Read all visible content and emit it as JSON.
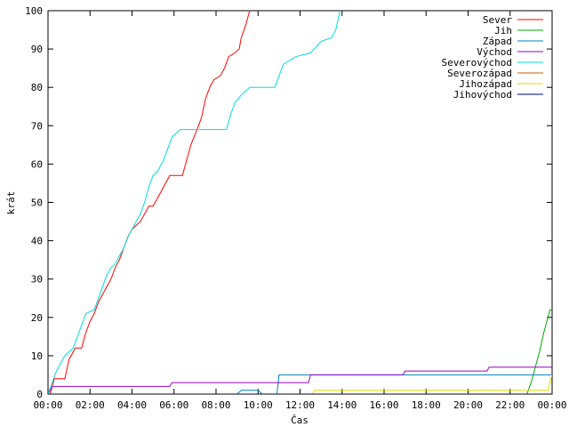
{
  "chart_data": {
    "type": "line",
    "title": "",
    "xlabel": "Čas",
    "ylabel": "krát",
    "xlim": [
      0,
      24
    ],
    "ylim": [
      0,
      100
    ],
    "x_tick_labels": [
      "00:00",
      "02:00",
      "04:00",
      "06:00",
      "08:00",
      "10:00",
      "12:00",
      "14:00",
      "16:00",
      "18:00",
      "20:00",
      "22:00",
      "00:00"
    ],
    "y_tick_labels": [
      "0",
      "10",
      "20",
      "30",
      "40",
      "50",
      "60",
      "70",
      "80",
      "90",
      "100"
    ],
    "legend_position": "top-right",
    "grid": false,
    "series": [
      {
        "name": "Sever",
        "color": "#ff0000",
        "points": [
          [
            0.1,
            0
          ],
          [
            0.3,
            4
          ],
          [
            0.8,
            4
          ],
          [
            1,
            9
          ],
          [
            1.3,
            12
          ],
          [
            1.6,
            12
          ],
          [
            1.8,
            16
          ],
          [
            2,
            19
          ],
          [
            2.2,
            21
          ],
          [
            2.4,
            24
          ],
          [
            2.6,
            26
          ],
          [
            2.8,
            28
          ],
          [
            3.0,
            30
          ],
          [
            3.2,
            33
          ],
          [
            3.4,
            35
          ],
          [
            3.6,
            38
          ],
          [
            3.8,
            41
          ],
          [
            4.0,
            43
          ],
          [
            4.2,
            44
          ],
          [
            4.4,
            45
          ],
          [
            4.6,
            47
          ],
          [
            4.8,
            49
          ],
          [
            5.0,
            49
          ],
          [
            5.2,
            51
          ],
          [
            5.4,
            53
          ],
          [
            5.6,
            55
          ],
          [
            5.8,
            57
          ],
          [
            6.4,
            57
          ],
          [
            6.6,
            61
          ],
          [
            6.8,
            65
          ],
          [
            7.1,
            69
          ],
          [
            7.3,
            72
          ],
          [
            7.5,
            77
          ],
          [
            7.7,
            80
          ],
          [
            7.9,
            82
          ],
          [
            8.2,
            83
          ],
          [
            8.4,
            85
          ],
          [
            8.6,
            88
          ],
          [
            8.9,
            89
          ],
          [
            9.1,
            90
          ],
          [
            9.2,
            93
          ],
          [
            9.4,
            96
          ],
          [
            9.6,
            100
          ]
        ]
      },
      {
        "name": "Jih",
        "color": "#00aa00",
        "points": [
          [
            0,
            0
          ],
          [
            22.8,
            0
          ],
          [
            23,
            3
          ],
          [
            23.2,
            7
          ],
          [
            23.4,
            11
          ],
          [
            23.6,
            16
          ],
          [
            23.8,
            20
          ],
          [
            23.9,
            22
          ],
          [
            24,
            22
          ]
        ]
      },
      {
        "name": "Západ",
        "color": "#0080c0",
        "points": [
          [
            0,
            0
          ],
          [
            9,
            0
          ],
          [
            9.2,
            1
          ],
          [
            10,
            1
          ],
          [
            10.2,
            0
          ],
          [
            10.9,
            0
          ],
          [
            11,
            5
          ],
          [
            24,
            5
          ]
        ]
      },
      {
        "name": "Východ",
        "color": "#9900cc",
        "points": [
          [
            0,
            0
          ],
          [
            0.2,
            2
          ],
          [
            5.8,
            2
          ],
          [
            5.9,
            3
          ],
          [
            11.4,
            3
          ],
          [
            12.4,
            3
          ],
          [
            12.5,
            5
          ],
          [
            16.9,
            5
          ],
          [
            17,
            6
          ],
          [
            20.9,
            6
          ],
          [
            21,
            7
          ],
          [
            24,
            7
          ]
        ]
      },
      {
        "name": "Severovýchod",
        "color": "#00dddd",
        "points": [
          [
            0,
            0
          ],
          [
            0.2,
            3
          ],
          [
            0.4,
            6
          ],
          [
            0.6,
            8
          ],
          [
            0.8,
            10
          ],
          [
            1.0,
            11
          ],
          [
            1.2,
            12
          ],
          [
            1.4,
            15
          ],
          [
            1.6,
            18
          ],
          [
            1.8,
            21
          ],
          [
            2.2,
            22
          ],
          [
            2.4,
            25
          ],
          [
            2.6,
            28
          ],
          [
            2.8,
            31
          ],
          [
            3.0,
            33
          ],
          [
            3.2,
            34
          ],
          [
            3.4,
            36
          ],
          [
            3.6,
            38
          ],
          [
            3.8,
            41
          ],
          [
            4.0,
            43
          ],
          [
            4.2,
            45
          ],
          [
            4.4,
            47
          ],
          [
            4.6,
            50
          ],
          [
            4.8,
            54
          ],
          [
            5.0,
            57
          ],
          [
            5.2,
            58
          ],
          [
            5.5,
            61
          ],
          [
            5.7,
            64
          ],
          [
            5.9,
            67
          ],
          [
            6.1,
            68
          ],
          [
            6.3,
            69
          ],
          [
            8.5,
            69
          ],
          [
            8.7,
            73
          ],
          [
            8.9,
            76
          ],
          [
            9.2,
            78
          ],
          [
            9.6,
            80
          ],
          [
            10.8,
            80
          ],
          [
            11.0,
            83
          ],
          [
            11.2,
            86
          ],
          [
            11.5,
            87
          ],
          [
            11.8,
            88
          ],
          [
            12.5,
            89
          ],
          [
            13.0,
            92
          ],
          [
            13.5,
            93
          ],
          [
            13.7,
            95
          ],
          [
            13.9,
            100
          ]
        ]
      },
      {
        "name": "Severozápad",
        "color": "#c06000",
        "points": []
      },
      {
        "name": "Jihozápad",
        "color": "#dddd00",
        "points": [
          [
            0,
            0
          ],
          [
            12.6,
            0
          ],
          [
            12.7,
            1
          ],
          [
            23.8,
            1
          ],
          [
            24,
            5
          ]
        ]
      },
      {
        "name": "Jihovýchod",
        "color": "#000080",
        "points": [
          [
            0,
            0
          ],
          [
            24,
            0
          ]
        ]
      }
    ]
  }
}
